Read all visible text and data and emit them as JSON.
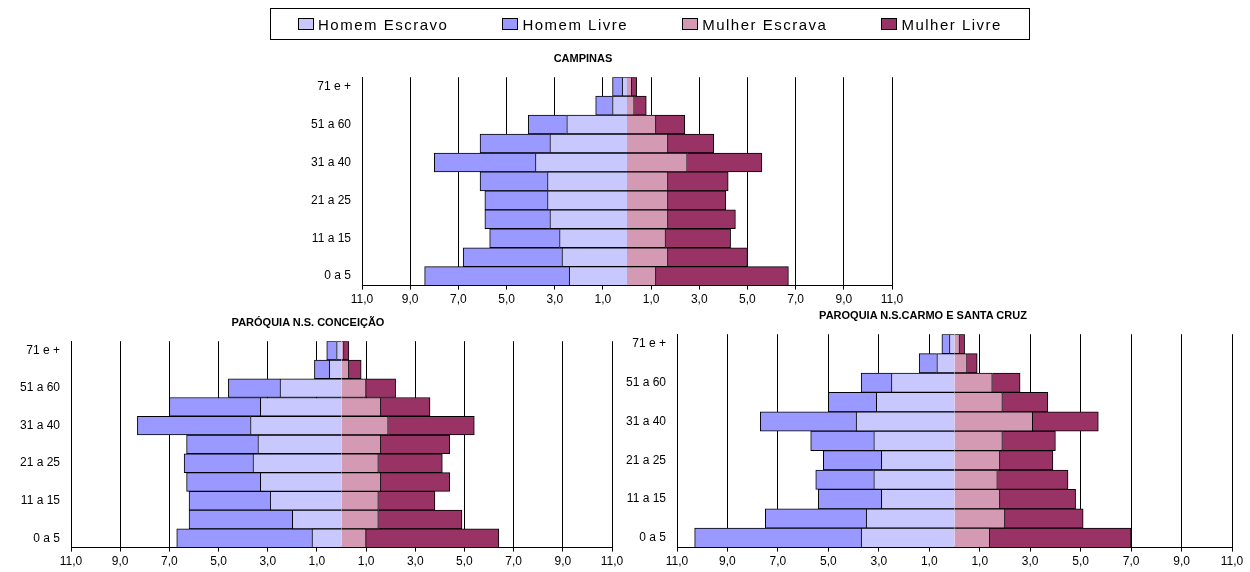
{
  "chart_data": [
    {
      "type": "bar",
      "orientation": "horizontal",
      "stacked": true,
      "title": "CAMPINAS",
      "legend": "top",
      "grid": "x",
      "categories": [
        "71 e +",
        null,
        "51 a 60",
        null,
        "31 a 40",
        null,
        "21 a 25",
        null,
        "11 a 15",
        null,
        "0 a 5"
      ],
      "xlim": [
        -11,
        11
      ],
      "xticks": [
        {
          "value": -11,
          "label": "11,0"
        },
        {
          "value": -9,
          "label": "9,0"
        },
        {
          "value": -7,
          "label": "7,0"
        },
        {
          "value": -5,
          "label": "5,0"
        },
        {
          "value": -3,
          "label": "3,0"
        },
        {
          "value": -1,
          "label": "1,0"
        },
        {
          "value": 1,
          "label": "1,0"
        },
        {
          "value": 3,
          "label": "3,0"
        },
        {
          "value": 5,
          "label": "5,0"
        },
        {
          "value": 7,
          "label": "7,0"
        },
        {
          "value": 9,
          "label": "9,0"
        },
        {
          "value": 11,
          "label": "11,0"
        }
      ],
      "series": [
        {
          "name": "Homem Escravo",
          "color": "#c8c8ff",
          "values": [
            -0.2,
            -0.6,
            -2.5,
            -3.2,
            -3.8,
            -3.3,
            -3.3,
            -3.2,
            -2.8,
            -2.7,
            -2.4
          ]
        },
        {
          "name": "Homem Livre",
          "color": "#9999ff",
          "values": [
            -0.4,
            -0.7,
            -1.6,
            -2.9,
            -4.2,
            -2.8,
            -2.6,
            -2.7,
            -2.9,
            -4.1,
            -6.0
          ]
        },
        {
          "name": "Mulher Escrava",
          "color": "#d49ab4",
          "values": [
            0.2,
            0.3,
            1.2,
            1.7,
            2.5,
            1.7,
            1.7,
            1.7,
            1.6,
            1.7,
            1.2
          ]
        },
        {
          "name": "Mulher Livre",
          "color": "#993366",
          "values": [
            0.2,
            0.5,
            1.2,
            1.9,
            3.1,
            2.5,
            2.4,
            2.8,
            2.7,
            3.3,
            5.5
          ]
        }
      ]
    },
    {
      "type": "bar",
      "orientation": "horizontal",
      "stacked": true,
      "title": "PARÓQUIA N.S. CONCEIÇÃO",
      "grid": "x",
      "categories": [
        "71 e +",
        null,
        "51 a 60",
        null,
        "31 a 40",
        null,
        "21 a 25",
        null,
        "11 a 15",
        null,
        "0 a 5"
      ],
      "xlim": [
        -11,
        11
      ],
      "xticks": [
        {
          "value": -11,
          "label": "11,0"
        },
        {
          "value": -9,
          "label": "9,0"
        },
        {
          "value": -7,
          "label": "7,0"
        },
        {
          "value": -5,
          "label": "5,0"
        },
        {
          "value": -3,
          "label": "3,0"
        },
        {
          "value": -1,
          "label": "1,0"
        },
        {
          "value": 1,
          "label": "1,0"
        },
        {
          "value": 3,
          "label": "3,0"
        },
        {
          "value": 5,
          "label": "5,0"
        },
        {
          "value": 7,
          "label": "7,0"
        },
        {
          "value": 9,
          "label": "9,0"
        },
        {
          "value": 11,
          "label": "11,0"
        }
      ],
      "series": [
        {
          "color": "#c8c8ff",
          "values": [
            -0.2,
            -0.5,
            -2.5,
            -3.3,
            -3.7,
            -3.4,
            -3.6,
            -3.3,
            -2.9,
            -2.0,
            -1.2
          ]
        },
        {
          "color": "#9999ff",
          "values": [
            -0.4,
            -0.6,
            -2.1,
            -3.7,
            -4.6,
            -2.9,
            -2.8,
            -3.0,
            -3.3,
            -4.2,
            -5.5
          ]
        },
        {
          "color": "#d49ab4",
          "values": [
            0.1,
            0.3,
            1.0,
            1.6,
            1.9,
            1.6,
            1.5,
            1.6,
            1.5,
            1.5,
            1.0
          ]
        },
        {
          "color": "#993366",
          "values": [
            0.2,
            0.5,
            1.2,
            2.0,
            3.5,
            2.8,
            2.6,
            2.8,
            2.3,
            3.4,
            5.4
          ]
        }
      ]
    },
    {
      "type": "bar",
      "orientation": "horizontal",
      "stacked": true,
      "title": "PAROQUIA N.S.CARMO E SANTA CRUZ",
      "grid": "x",
      "categories": [
        "71 e +",
        null,
        "51 a 60",
        null,
        "31 a 40",
        null,
        "21 a 25",
        null,
        "11 a 15",
        null,
        "0 a 5"
      ],
      "xlim": [
        -11,
        11
      ],
      "xticks": [
        {
          "value": -11,
          "label": "11,0"
        },
        {
          "value": -9,
          "label": "9,0"
        },
        {
          "value": -7,
          "label": "7,0"
        },
        {
          "value": -5,
          "label": "5,0"
        },
        {
          "value": -3,
          "label": "3,0"
        },
        {
          "value": -1,
          "label": "1,0"
        },
        {
          "value": 1,
          "label": "1,0"
        },
        {
          "value": 3,
          "label": "3,0"
        },
        {
          "value": 5,
          "label": "5,0"
        },
        {
          "value": 7,
          "label": "7,0"
        },
        {
          "value": 9,
          "label": "9,0"
        },
        {
          "value": 11,
          "label": "11,0"
        }
      ],
      "series": [
        {
          "color": "#c8c8ff",
          "values": [
            -0.2,
            -0.7,
            -2.5,
            -3.1,
            -3.9,
            -3.2,
            -2.9,
            -3.2,
            -2.9,
            -3.5,
            -3.7
          ]
        },
        {
          "color": "#9999ff",
          "values": [
            -0.3,
            -0.7,
            -1.2,
            -1.9,
            -3.8,
            -2.5,
            -2.3,
            -2.3,
            -2.5,
            -4.0,
            -6.6
          ]
        },
        {
          "color": "#d49ab4",
          "values": [
            0.2,
            0.5,
            1.5,
            1.9,
            3.1,
            1.9,
            1.8,
            1.7,
            1.8,
            2.0,
            1.4
          ]
        },
        {
          "color": "#993366",
          "values": [
            0.2,
            0.4,
            1.1,
            1.8,
            2.6,
            2.1,
            2.1,
            2.8,
            3.0,
            3.1,
            5.6
          ]
        }
      ]
    }
  ]
}
